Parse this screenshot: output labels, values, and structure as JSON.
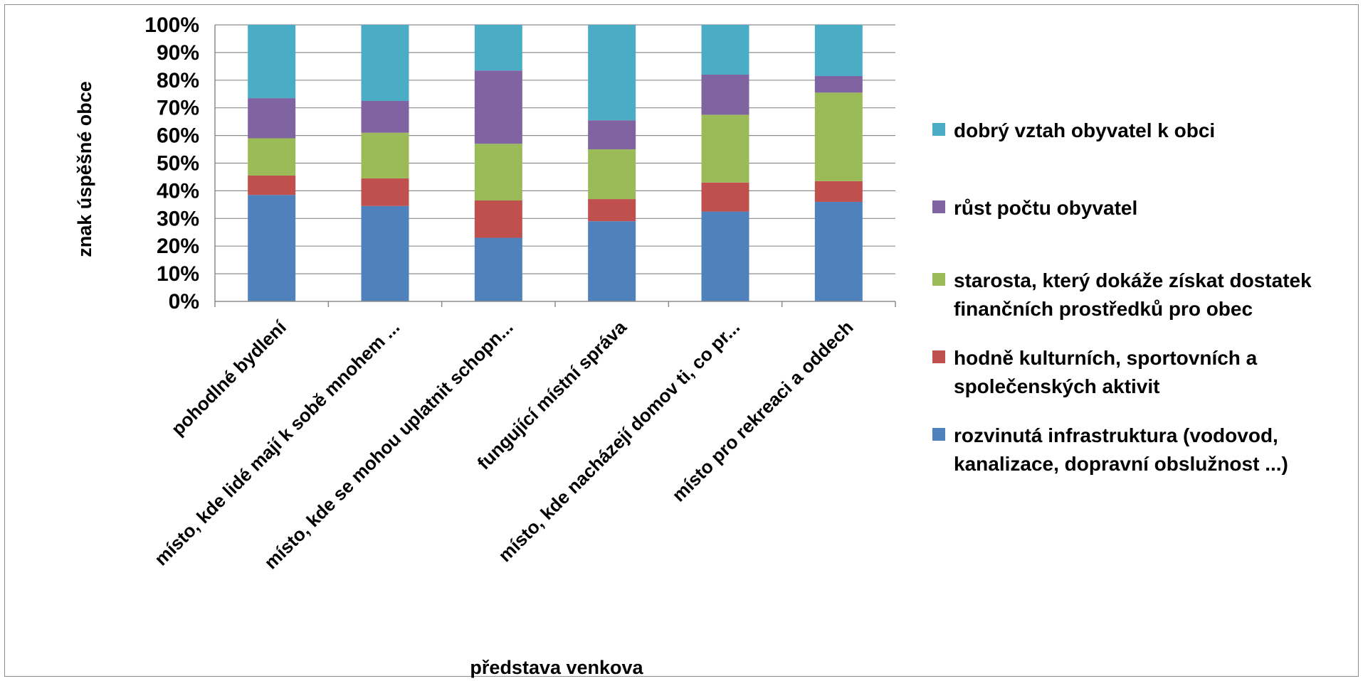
{
  "chart_data": {
    "type": "bar",
    "stacked": true,
    "percent": true,
    "categories": [
      "pohodlné bydlení",
      "místo, kde lidé mají k sobě mnohem ...",
      "místo, kde se mohou uplatnit schopn...",
      "fungující místní správa",
      "místo, kde nacházejí domov ti, co pr...",
      "místo pro rekreaci a oddech"
    ],
    "series": [
      {
        "name": "rozvinutá infrastruktura (vodovod, kanalizace, dopravní obslužnost ...)",
        "color": "#4f81bd",
        "values": [
          38.5,
          34.5,
          23,
          29,
          32.5,
          36
        ]
      },
      {
        "name": "hodně kulturních, sportovních a společenských aktivit",
        "color": "#c0504d",
        "values": [
          7,
          10,
          13.5,
          8,
          10.5,
          7.5
        ]
      },
      {
        "name": "starosta, který dokáže získat dostatek finančních prostředků pro obec",
        "color": "#9bbb59",
        "values": [
          13.5,
          16.5,
          20.5,
          18,
          24.5,
          32
        ]
      },
      {
        "name": "růst počtu obyvatel",
        "color": "#8064a2",
        "values": [
          14.5,
          11.5,
          26.5,
          10.5,
          14.5,
          6
        ]
      },
      {
        "name": "dobrý vztah obyvatel k obci",
        "color": "#4bacc6",
        "values": [
          26.5,
          27.5,
          16.5,
          34.5,
          18,
          18.5
        ]
      }
    ],
    "legend_lines": [
      [
        "dobrý vztah obyvatel k obci"
      ],
      [
        "růst počtu obyvatel"
      ],
      [
        "starosta, který dokáže získat dostatek",
        "finančních prostředků pro obec"
      ],
      [
        "hodně kulturních, sportovních a",
        "společenských aktivit"
      ],
      [
        "rozvinutá infrastruktura (vodovod,",
        "kanalizace, dopravní obslužnost ...)"
      ]
    ],
    "yticks": [
      "0%",
      "10%",
      "20%",
      "30%",
      "40%",
      "50%",
      "60%",
      "70%",
      "80%",
      "90%",
      "100%"
    ],
    "ylim": [
      0,
      100
    ],
    "xlabel": "představa venkova",
    "ylabel": "znak úspěšné obce",
    "grid": true,
    "legend_position": "right"
  }
}
